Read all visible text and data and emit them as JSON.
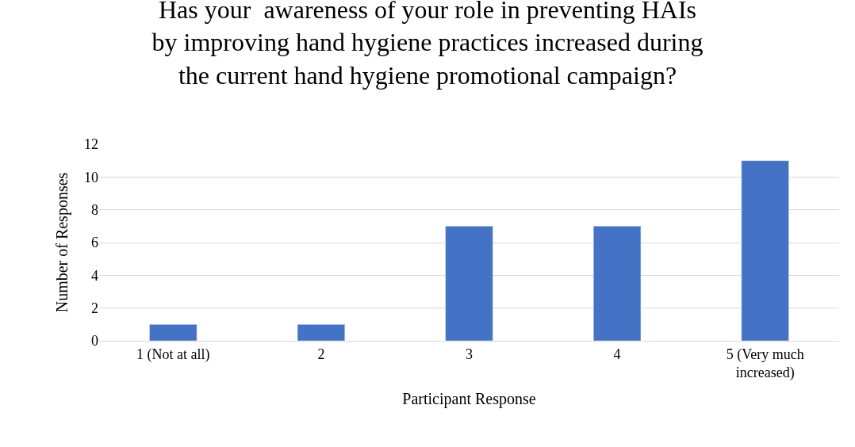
{
  "chart_data": {
    "type": "bar",
    "title": "Has your  awareness of your role in preventing HAIs by improving hand hygiene practices increased during the current hand hygiene promotional campaign?",
    "xlabel": "Participant Response",
    "ylabel": "Number of Responses",
    "categories": [
      "1 (Not at all)",
      "2",
      "3",
      "4",
      "5 (Very much increased)"
    ],
    "values": [
      1,
      1,
      7,
      7,
      11
    ],
    "color": "#4472c4",
    "ylim": [
      0,
      12
    ],
    "yticks": [
      0,
      2,
      4,
      6,
      8,
      10,
      12
    ],
    "grid": "y"
  }
}
